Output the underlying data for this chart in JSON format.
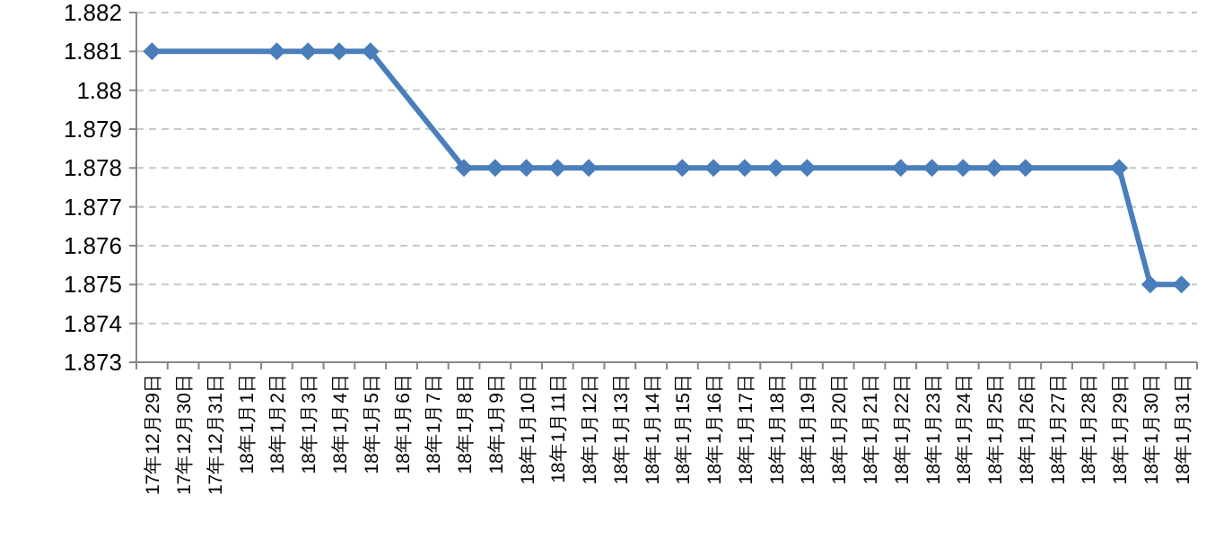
{
  "chart_data": {
    "type": "line",
    "categories": [
      "17年12月29日",
      "17年12月30日",
      "17年12月31日",
      "18年1月1日",
      "18年1月2日",
      "18年1月3日",
      "18年1月4日",
      "18年1月5日",
      "18年1月6日",
      "18年1月7日",
      "18年1月8日",
      "18年1月9日",
      "18年1月10日",
      "18年1月11日",
      "18年1月12日",
      "18年1月13日",
      "18年1月14日",
      "18年1月15日",
      "18年1月16日",
      "18年1月17日",
      "18年1月18日",
      "18年1月19日",
      "18年1月20日",
      "18年1月21日",
      "18年1月22日",
      "18年1月23日",
      "18年1月24日",
      "18年1月25日",
      "18年1月26日",
      "18年1月27日",
      "18年1月28日",
      "18年1月29日",
      "18年1月30日",
      "18年1月31日"
    ],
    "series": [
      {
        "color": "#4a7ebb",
        "values": [
          1.881,
          null,
          null,
          null,
          1.881,
          1.881,
          1.881,
          1.881,
          null,
          null,
          1.878,
          1.878,
          1.878,
          1.878,
          1.878,
          null,
          null,
          1.878,
          1.878,
          1.878,
          1.878,
          1.878,
          null,
          null,
          1.878,
          1.878,
          1.878,
          1.878,
          1.878,
          null,
          null,
          1.878,
          1.875,
          1.875
        ]
      }
    ],
    "ylim": [
      1.873,
      1.882
    ],
    "yticks": [
      1.873,
      1.874,
      1.875,
      1.876,
      1.877,
      1.878,
      1.879,
      1.88,
      1.881,
      1.882
    ],
    "grid": "y",
    "marker": "diamond",
    "line_style": "solid"
  }
}
